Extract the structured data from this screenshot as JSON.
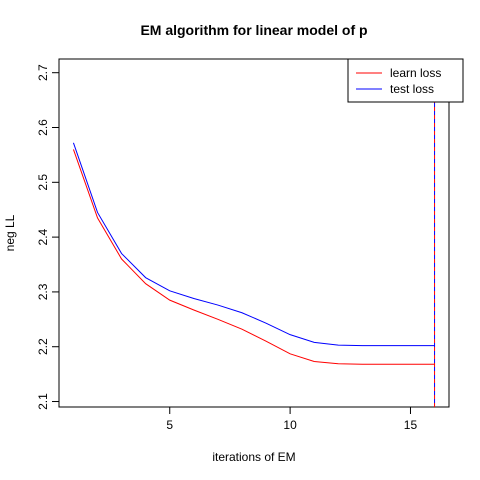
{
  "chart_data": {
    "type": "line",
    "title": "EM algorithm for linear model of p",
    "xlabel": "iterations of EM",
    "ylabel": "neg LL",
    "xlim": [
      0.4,
      16.6
    ],
    "ylim": [
      2.09,
      2.725
    ],
    "xticks": [
      5,
      10,
      15
    ],
    "yticks": [
      2.1,
      2.2,
      2.3,
      2.4,
      2.5,
      2.6,
      2.7
    ],
    "grid": false,
    "legend_position": "top-right",
    "x": [
      1,
      2,
      3,
      4,
      5,
      6,
      7,
      8,
      9,
      10,
      11,
      12,
      13,
      14,
      15,
      16
    ],
    "series": [
      {
        "name": "learn loss",
        "color": "#ff0000",
        "values": [
          2.56,
          2.435,
          2.36,
          2.315,
          2.285,
          2.267,
          2.25,
          2.232,
          2.21,
          2.187,
          2.173,
          2.169,
          2.168,
          2.168,
          2.168,
          2.168
        ]
      },
      {
        "name": "test loss",
        "color": "#0000ff",
        "values": [
          2.572,
          2.445,
          2.37,
          2.326,
          2.302,
          2.288,
          2.276,
          2.262,
          2.243,
          2.222,
          2.208,
          2.203,
          2.202,
          2.202,
          2.202,
          2.202
        ]
      }
    ],
    "vline": {
      "x": 16,
      "colors": [
        "#ff0000",
        "#0000ff"
      ],
      "style": "dashed"
    }
  }
}
